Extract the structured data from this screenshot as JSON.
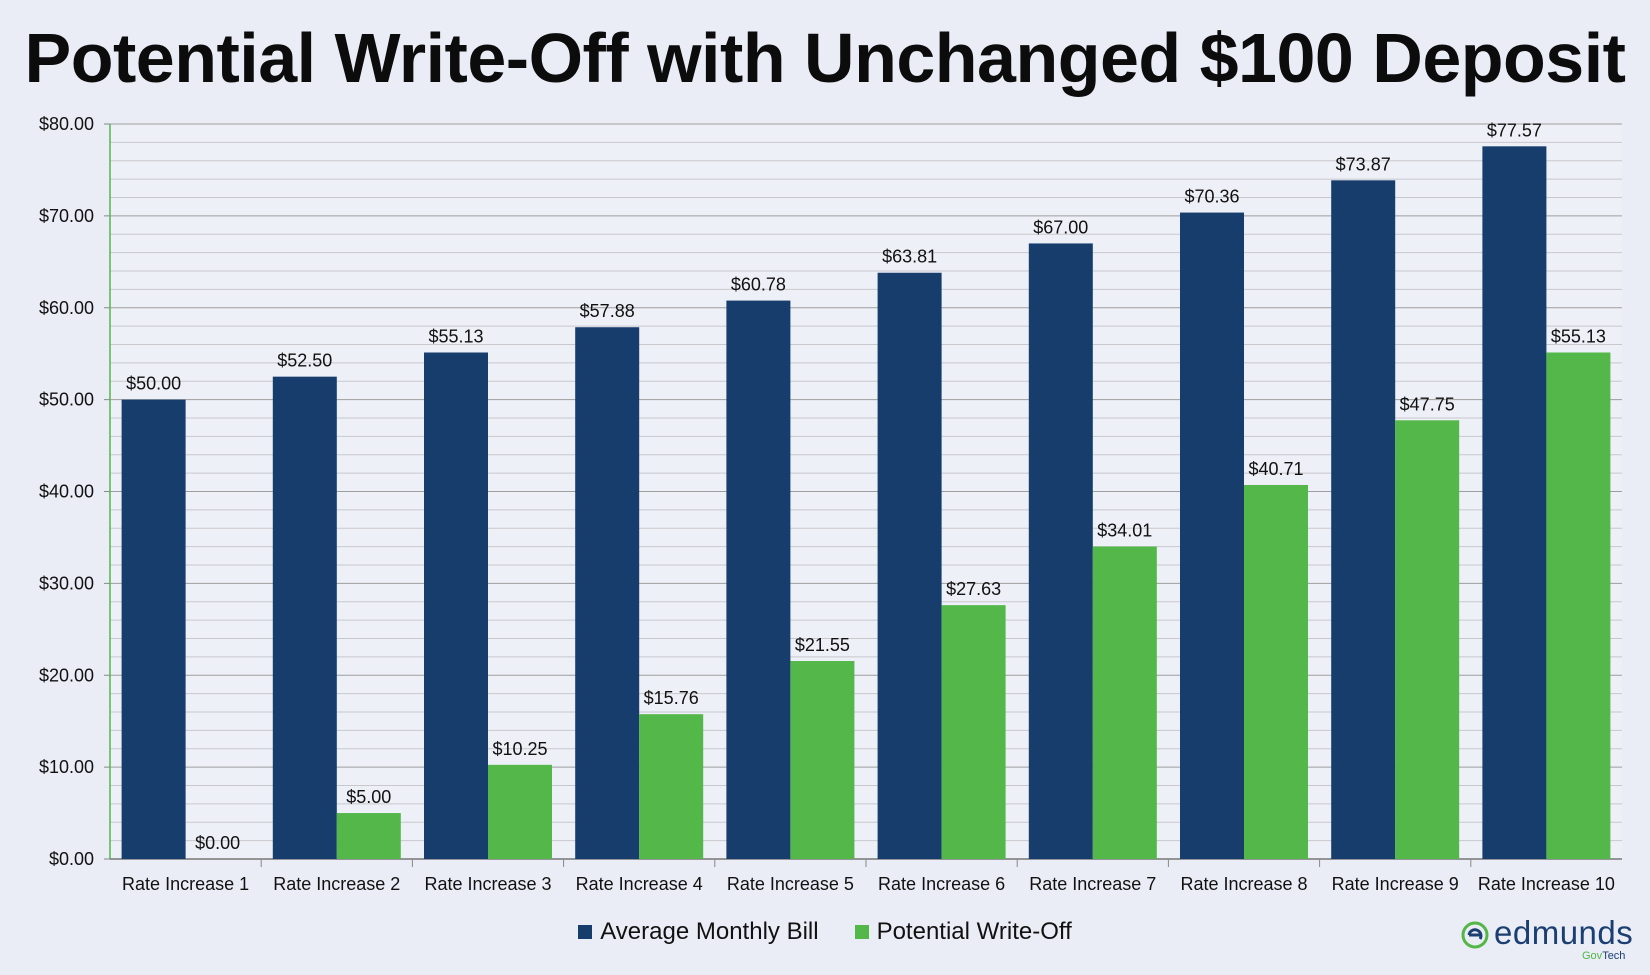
{
  "title": "Potential Write-Off with Unchanged $100 Deposit",
  "colors": {
    "bill": "#173d6d",
    "writeoff": "#53b749",
    "grid": "#9e9e9e",
    "background": "#eaedf6"
  },
  "legend": {
    "bill_label": "Average Monthly Bill",
    "writeoff_label": "Potential Write-Off"
  },
  "logo": {
    "word": "edmunds",
    "sub_gov": "Gov",
    "sub_tech": "Tech"
  },
  "chart_data": {
    "type": "bar",
    "categories": [
      "Rate Increase 1",
      "Rate Increase 2",
      "Rate Increase 3",
      "Rate Increase 4",
      "Rate Increase 5",
      "Rate Increase 6",
      "Rate Increase 7",
      "Rate Increase 8",
      "Rate Increase 9",
      "Rate Increase 10"
    ],
    "series": [
      {
        "name": "Average Monthly Bill",
        "values": [
          50.0,
          52.5,
          55.13,
          57.88,
          60.78,
          63.81,
          67.0,
          70.36,
          73.87,
          77.57
        ],
        "labels": [
          "$50.00",
          "$52.50",
          "$55.13",
          "$57.88",
          "$60.78",
          "$63.81",
          "$67.00",
          "$70.36",
          "$73.87",
          "$77.57"
        ]
      },
      {
        "name": "Potential Write-Off",
        "values": [
          0.0,
          5.0,
          10.25,
          15.76,
          21.55,
          27.63,
          34.01,
          40.71,
          47.75,
          55.13
        ],
        "labels": [
          "$0.00",
          "$5.00",
          "$10.25",
          "$15.76",
          "$21.55",
          "$27.63",
          "$34.01",
          "$40.71",
          "$47.75",
          "$55.13"
        ]
      }
    ],
    "yticks": [
      "$0.00",
      "$10.00",
      "$20.00",
      "$30.00",
      "$40.00",
      "$50.00",
      "$60.00",
      "$70.00",
      "$80.00"
    ],
    "ylim": [
      0,
      80
    ],
    "major_step": 10,
    "minor_step": 2,
    "grid": true,
    "legend_position": "bottom",
    "title": "Potential Write-Off with Unchanged $100 Deposit",
    "xlabel": "",
    "ylabel": ""
  }
}
